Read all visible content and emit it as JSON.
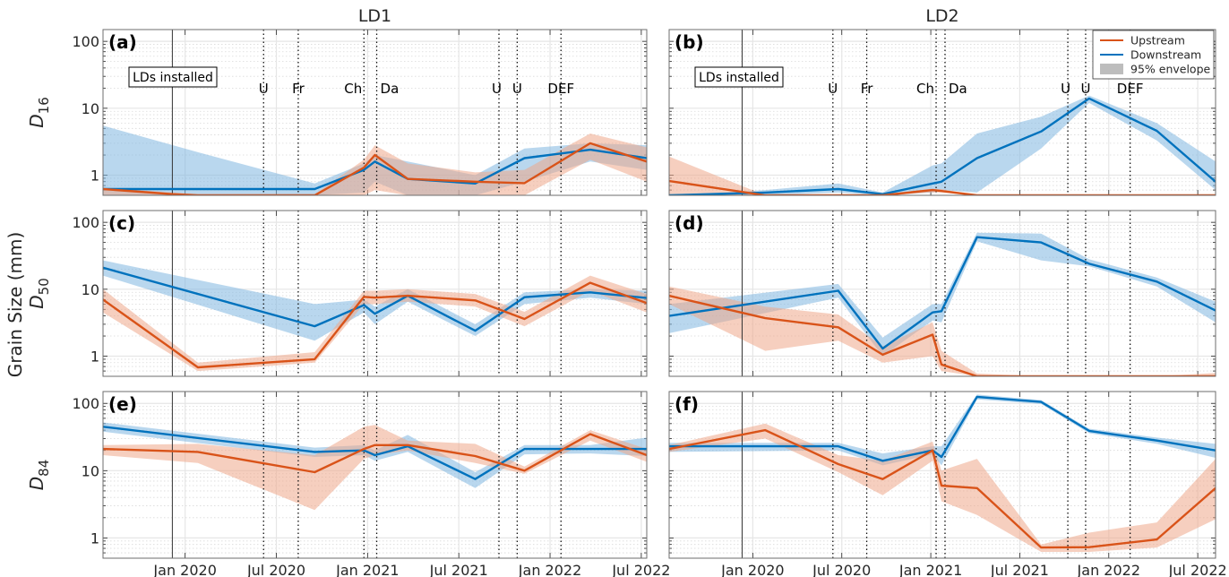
{
  "chart_data": {
    "type": "line",
    "ylabel": "Grain Size (mm)",
    "yscale": "log",
    "ylim": [
      0.5,
      150
    ],
    "yticks": [
      1,
      10,
      100
    ],
    "ytick_labels": [
      "1",
      "10",
      "100"
    ],
    "grid": "on (major and minor, dotted)",
    "columns": [
      "LD1",
      "LD2"
    ],
    "row_labels": [
      {
        "main": "D",
        "sub": "16"
      },
      {
        "main": "D",
        "sub": "50"
      },
      {
        "main": "D",
        "sub": "84"
      }
    ],
    "legend": {
      "placement": "top-right of panel (b)",
      "entries": [
        {
          "label": "Upstream",
          "kind": "line",
          "color": "#D95319"
        },
        {
          "label": "Downstream",
          "kind": "line",
          "color": "#0072BD"
        },
        {
          "label": "95% envelope",
          "kind": "patch",
          "color": "#BDBDBD"
        }
      ]
    },
    "colors": {
      "upstream": "#D95319",
      "downstream": "#0072BD",
      "upstream_env": "#F3C3AE",
      "downstream_env": "#B3D4EC"
    },
    "xticks": [
      "Jan 2020",
      "Jul 2020",
      "Jan 2021",
      "Jul 2021",
      "Jan 2022",
      "Jul 2022"
    ],
    "xtick_values": [
      2020.0,
      2020.5,
      2021.0,
      2021.5,
      2022.0,
      2022.5
    ],
    "install_label": "LDs installed",
    "sites": [
      {
        "name": "LD1",
        "xlim": [
          2019.55,
          2022.53
        ],
        "install_date": 2019.93,
        "events": [
          {
            "label": "U",
            "date": 2020.43
          },
          {
            "label": "Fr",
            "date": 2020.62
          },
          {
            "label": "Ch",
            "date": 2020.98
          },
          {
            "label": "Da",
            "date": 2021.05
          },
          {
            "label": "U",
            "date": 2021.72
          },
          {
            "label": "U",
            "date": 2021.82
          },
          {
            "label": "DEF",
            "date": 2022.06
          }
        ],
        "panels": [
          {
            "letter": "(a)",
            "metric": "D16",
            "upstream": {
              "x": [
                2019.55,
                2019.93,
                2020.07,
                2020.71,
                2020.98,
                2021.04,
                2021.22,
                2021.59,
                2021.86,
                2022.22,
                2022.53
              ],
              "y": [
                0.62,
                0.52,
                0.5,
                0.5,
                1.3,
                2.0,
                0.88,
                0.8,
                0.76,
                3.0,
                1.6
              ],
              "lo": [
                0.5,
                0.5,
                0.5,
                0.5,
                0.5,
                0.6,
                0.5,
                0.5,
                0.5,
                1.7,
                0.8
              ],
              "hi": [
                0.65,
                0.55,
                0.52,
                0.52,
                1.7,
                2.8,
                1.5,
                1.1,
                1.2,
                4.2,
                2.6
              ]
            },
            "downstream": {
              "x": [
                2019.55,
                2020.07,
                2020.71,
                2020.98,
                2021.04,
                2021.22,
                2021.59,
                2021.86,
                2022.22,
                2022.53
              ],
              "y": [
                0.62,
                0.62,
                0.62,
                1.2,
                1.6,
                0.88,
                0.75,
                1.8,
                2.4,
                1.8
              ],
              "lo": [
                0.5,
                0.5,
                0.5,
                0.55,
                0.8,
                0.5,
                0.5,
                0.8,
                1.6,
                1.2
              ],
              "hi": [
                5.5,
                2.2,
                0.75,
                1.5,
                2.0,
                1.6,
                1.0,
                2.5,
                3.0,
                2.8
              ]
            }
          },
          {
            "letter": "(c)",
            "metric": "D50",
            "upstream": {
              "x": [
                2019.55,
                2020.07,
                2020.71,
                2020.98,
                2021.04,
                2021.22,
                2021.59,
                2021.86,
                2022.22,
                2022.53
              ],
              "y": [
                7.0,
                0.68,
                0.9,
                7.7,
                7.5,
                8.0,
                6.8,
                3.6,
                12.5,
                6.2
              ],
              "lo": [
                4.5,
                0.6,
                0.8,
                6.0,
                6.0,
                6.5,
                5.5,
                2.8,
                9.5,
                4.5
              ],
              "hi": [
                10.0,
                0.8,
                1.15,
                9.5,
                9.5,
                10.0,
                8.5,
                4.6,
                16.0,
                8.5
              ]
            },
            "downstream": {
              "x": [
                2019.55,
                2020.71,
                2020.98,
                2021.04,
                2021.22,
                2021.59,
                2021.86,
                2022.22,
                2022.53
              ],
              "y": [
                21.0,
                2.8,
                5.8,
                4.3,
                8.0,
                2.4,
                7.6,
                9.0,
                7.4
              ],
              "lo": [
                16.0,
                1.7,
                4.5,
                3.0,
                6.5,
                2.0,
                6.0,
                7.5,
                6.0
              ],
              "hi": [
                27.0,
                6.0,
                7.0,
                5.5,
                10.0,
                3.0,
                9.0,
                10.0,
                9.5
              ]
            }
          },
          {
            "letter": "(e)",
            "metric": "D84",
            "upstream": {
              "x": [
                2019.55,
                2020.07,
                2020.71,
                2020.98,
                2021.04,
                2021.22,
                2021.59,
                2021.86,
                2022.22,
                2022.53
              ],
              "y": [
                21.0,
                19.0,
                9.5,
                21.0,
                24.0,
                24.0,
                16.5,
                10.0,
                35.0,
                17.0
              ],
              "lo": [
                17.0,
                13.0,
                2.6,
                15.0,
                17.0,
                20.0,
                13.0,
                9.0,
                28.0,
                13.5
              ],
              "hi": [
                24.0,
                25.0,
                17.0,
                45.0,
                48.0,
                28.0,
                25.0,
                11.5,
                40.0,
                21.0
              ]
            },
            "downstream": {
              "x": [
                2019.55,
                2020.71,
                2020.98,
                2021.04,
                2021.22,
                2021.59,
                2021.86,
                2022.22,
                2022.53
              ],
              "y": [
                45.0,
                19.0,
                20.0,
                17.0,
                23.0,
                7.5,
                21.0,
                21.0,
                21.0
              ],
              "lo": [
                38.0,
                16.0,
                17.0,
                14.0,
                19.0,
                5.5,
                17.5,
                18.0,
                16.5
              ],
              "hi": [
                52.0,
                22.0,
                24.0,
                20.0,
                34.0,
                9.5,
                24.0,
                24.0,
                31.0
              ]
            }
          }
        ]
      },
      {
        "name": "LD2",
        "xlim": [
          2019.53,
          2022.6
        ],
        "install_date": 2019.94,
        "events": [
          {
            "label": "U",
            "date": 2020.45
          },
          {
            "label": "Fr",
            "date": 2020.64
          },
          {
            "label": "Ch",
            "date": 2021.03
          },
          {
            "label": "Da",
            "date": 2021.08
          },
          {
            "label": "U",
            "date": 2021.77
          },
          {
            "label": "U",
            "date": 2021.87
          },
          {
            "label": "DEF",
            "date": 2022.12
          }
        ],
        "panels": [
          {
            "letter": "(b)",
            "metric": "D16",
            "upstream": {
              "x": [
                2019.53,
                2020.07,
                2020.48,
                2020.73,
                2021.01,
                2021.06,
                2021.26,
                2021.62,
                2021.89,
                2022.27,
                2022.6
              ],
              "y": [
                0.82,
                0.5,
                0.5,
                0.5,
                0.6,
                0.58,
                0.5,
                0.5,
                0.5,
                0.5,
                0.5
              ],
              "lo": [
                0.5,
                0.5,
                0.5,
                0.5,
                0.55,
                0.55,
                0.5,
                0.5,
                0.5,
                0.5,
                0.5
              ],
              "hi": [
                1.9,
                0.5,
                0.5,
                0.52,
                0.63,
                0.62,
                0.5,
                0.5,
                0.5,
                0.5,
                0.5
              ]
            },
            "downstream": {
              "x": [
                2019.53,
                2020.07,
                2020.48,
                2020.73,
                2021.01,
                2021.06,
                2021.26,
                2021.62,
                2021.89,
                2022.27,
                2022.6
              ],
              "y": [
                0.5,
                0.55,
                0.62,
                0.52,
                0.75,
                0.8,
                1.8,
                4.5,
                14.0,
                4.6,
                0.8
              ],
              "lo": [
                0.5,
                0.5,
                0.55,
                0.5,
                0.55,
                0.6,
                0.55,
                2.5,
                12.0,
                3.3,
                0.6
              ],
              "hi": [
                0.5,
                0.6,
                0.75,
                0.55,
                1.4,
                1.5,
                4.2,
                7.5,
                15.5,
                6.0,
                1.6
              ]
            }
          },
          {
            "letter": "(d)",
            "metric": "D50",
            "upstream": {
              "x": [
                2019.53,
                2020.07,
                2020.48,
                2020.73,
                2021.01,
                2021.06,
                2021.26,
                2021.62,
                2021.89,
                2022.27,
                2022.6
              ],
              "y": [
                8.0,
                3.7,
                2.7,
                1.05,
                2.1,
                0.75,
                0.5,
                0.5,
                0.5,
                0.5,
                0.5
              ],
              "lo": [
                6.0,
                1.2,
                1.7,
                0.8,
                1.0,
                0.6,
                0.5,
                0.5,
                0.5,
                0.5,
                0.5
              ],
              "hi": [
                11.0,
                5.5,
                4.2,
                1.4,
                3.2,
                1.2,
                0.55,
                0.5,
                0.5,
                0.5,
                0.56
              ]
            },
            "downstream": {
              "x": [
                2019.53,
                2020.48,
                2020.73,
                2021.01,
                2021.06,
                2021.26,
                2021.62,
                2021.89,
                2022.27,
                2022.6
              ],
              "y": [
                4.0,
                9.5,
                1.3,
                4.5,
                4.7,
                60.0,
                50.0,
                24.0,
                13.0,
                4.8
              ],
              "lo": [
                2.2,
                7.5,
                1.0,
                3.4,
                3.2,
                52.0,
                27.0,
                22.0,
                11.0,
                3.2
              ],
              "hi": [
                6.0,
                12.0,
                1.9,
                6.0,
                6.0,
                70.0,
                68.0,
                28.0,
                15.0,
                6.5
              ]
            }
          },
          {
            "letter": "(f)",
            "metric": "D84",
            "upstream": {
              "x": [
                2019.53,
                2020.07,
                2020.48,
                2020.73,
                2021.01,
                2021.06,
                2021.26,
                2021.62,
                2021.89,
                2022.27,
                2022.6
              ],
              "y": [
                21.0,
                40.0,
                12.5,
                7.5,
                20.0,
                6.0,
                5.5,
                0.72,
                0.73,
                0.95,
                5.5
              ],
              "lo": [
                19.0,
                30.0,
                9.5,
                4.3,
                14.0,
                3.5,
                2.2,
                0.62,
                0.62,
                0.72,
                1.9
              ],
              "hi": [
                24.0,
                50.0,
                17.0,
                14.0,
                27.0,
                10.0,
                15.0,
                0.8,
                1.2,
                1.7,
                15.0
              ]
            },
            "downstream": {
              "x": [
                2019.53,
                2020.48,
                2020.73,
                2021.01,
                2021.06,
                2021.26,
                2021.62,
                2021.89,
                2022.27,
                2022.6
              ],
              "y": [
                23.0,
                23.0,
                14.0,
                20.0,
                16.0,
                125.0,
                105.0,
                39.0,
                28.0,
                20.0
              ],
              "lo": [
                19.0,
                20.0,
                12.0,
                17.5,
                12.0,
                115.0,
                98.0,
                36.0,
                25.0,
                15.5
              ],
              "hi": [
                26.0,
                26.0,
                18.0,
                23.0,
                23.0,
                135.0,
                112.0,
                42.0,
                31.0,
                25.0
              ]
            }
          }
        ]
      }
    ]
  }
}
